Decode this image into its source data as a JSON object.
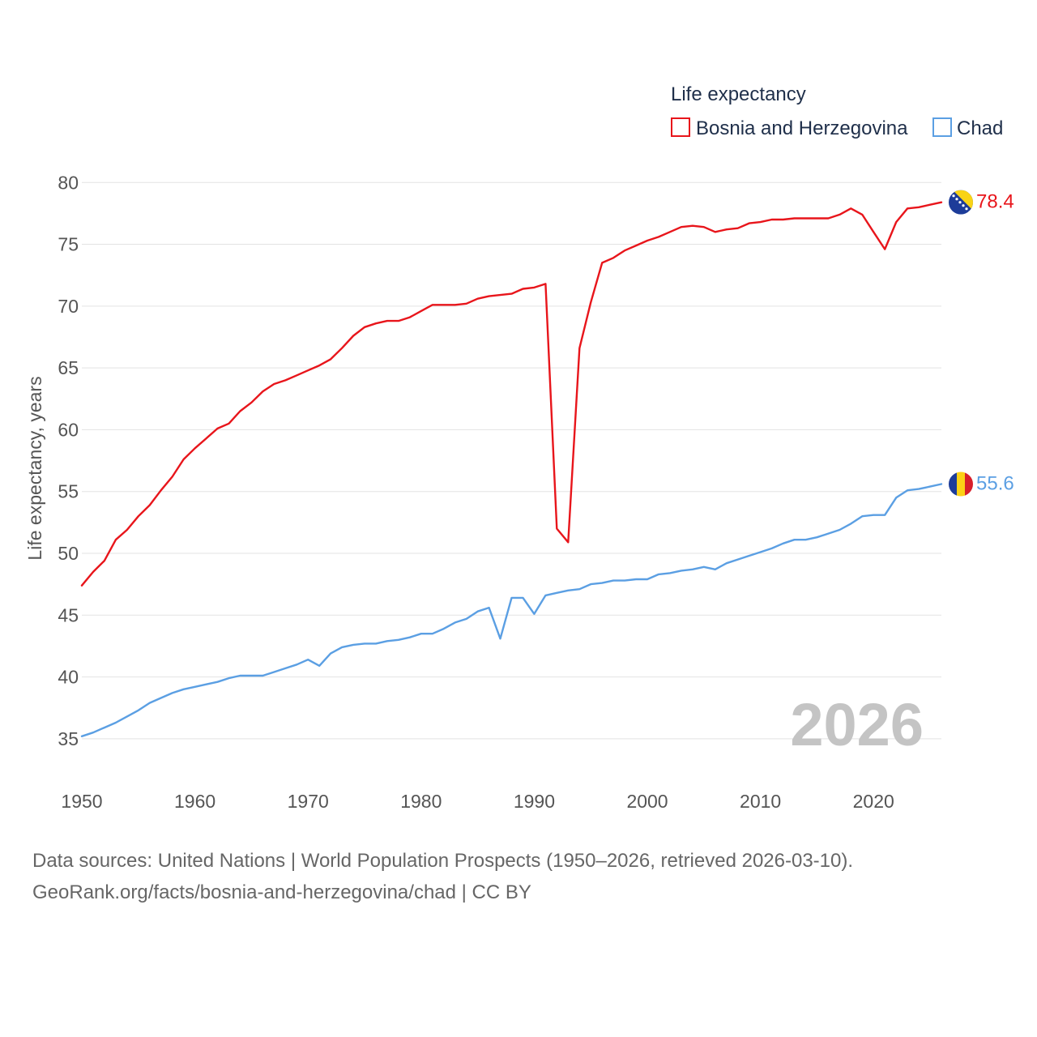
{
  "chart_data": {
    "type": "line",
    "legend_title": "Life expectancy",
    "ylabel": "Life expectancy, years",
    "xlabel": "",
    "xlim": [
      1950,
      2026
    ],
    "ylim": [
      32.5,
      81
    ],
    "x_ticks": [
      1950,
      1960,
      1970,
      1980,
      1990,
      2000,
      2010,
      2020
    ],
    "y_ticks": [
      35,
      40,
      45,
      50,
      55,
      60,
      65,
      70,
      75,
      80
    ],
    "grid": true,
    "legend_position": "top-right",
    "year_watermark": "2026",
    "x": [
      1950,
      1951,
      1952,
      1953,
      1954,
      1955,
      1956,
      1957,
      1958,
      1959,
      1960,
      1961,
      1962,
      1963,
      1964,
      1965,
      1966,
      1967,
      1968,
      1969,
      1970,
      1971,
      1972,
      1973,
      1974,
      1975,
      1976,
      1977,
      1978,
      1979,
      1980,
      1981,
      1982,
      1983,
      1984,
      1985,
      1986,
      1987,
      1988,
      1989,
      1990,
      1991,
      1992,
      1993,
      1994,
      1995,
      1996,
      1997,
      1998,
      1999,
      2000,
      2001,
      2002,
      2003,
      2004,
      2005,
      2006,
      2007,
      2008,
      2009,
      2010,
      2011,
      2012,
      2013,
      2014,
      2015,
      2016,
      2017,
      2018,
      2019,
      2020,
      2021,
      2022,
      2023,
      2024,
      2025,
      2026
    ],
    "series": [
      {
        "name": "Bosnia and Herzegovina",
        "color": "#e8151b",
        "end_label": "78.4",
        "flag": "bosnia-flag-icon",
        "values": [
          47.4,
          48.5,
          49.4,
          51.1,
          51.9,
          53.0,
          53.9,
          55.1,
          56.2,
          57.6,
          58.5,
          59.3,
          60.1,
          60.5,
          61.5,
          62.2,
          63.1,
          63.7,
          64.0,
          64.4,
          64.8,
          65.2,
          65.7,
          66.6,
          67.6,
          68.3,
          68.6,
          68.8,
          68.8,
          69.1,
          69.6,
          70.1,
          70.1,
          70.1,
          70.2,
          70.6,
          70.8,
          70.9,
          71.0,
          71.4,
          71.5,
          71.8,
          52.0,
          50.9,
          66.6,
          70.3,
          73.5,
          73.9,
          74.5,
          74.9,
          75.3,
          75.6,
          76.0,
          76.4,
          76.5,
          76.4,
          76.0,
          76.2,
          76.3,
          76.7,
          76.8,
          77.0,
          77.0,
          77.1,
          77.1,
          77.1,
          77.1,
          77.4,
          77.9,
          77.4,
          76.0,
          74.6,
          76.8,
          77.9,
          78.0,
          78.2,
          78.4
        ]
      },
      {
        "name": "Chad",
        "color": "#5b9fe3",
        "end_label": "55.6",
        "flag": "chad-flag-icon",
        "values": [
          35.2,
          35.5,
          35.9,
          36.3,
          36.8,
          37.3,
          37.9,
          38.3,
          38.7,
          39.0,
          39.2,
          39.4,
          39.6,
          39.9,
          40.1,
          40.1,
          40.1,
          40.4,
          40.7,
          41.0,
          41.4,
          40.9,
          41.9,
          42.4,
          42.6,
          42.7,
          42.7,
          42.9,
          43.0,
          43.2,
          43.5,
          43.5,
          43.9,
          44.4,
          44.7,
          45.3,
          45.6,
          43.1,
          46.4,
          46.4,
          45.1,
          46.6,
          46.8,
          47.0,
          47.1,
          47.5,
          47.6,
          47.8,
          47.8,
          47.9,
          47.9,
          48.3,
          48.4,
          48.6,
          48.7,
          48.9,
          48.7,
          49.2,
          49.5,
          49.8,
          50.1,
          50.4,
          50.8,
          51.1,
          51.1,
          51.3,
          51.6,
          51.9,
          52.4,
          53.0,
          53.1,
          53.1,
          54.5,
          55.1,
          55.2,
          55.4,
          55.6
        ]
      }
    ]
  },
  "footer": {
    "source_line": "Data sources: United Nations | World Population Prospects (1950–2026, retrieved 2026-03-10).",
    "url_line": "GeoRank.org/facts/bosnia-and-herzegovina/chad | CC BY"
  }
}
